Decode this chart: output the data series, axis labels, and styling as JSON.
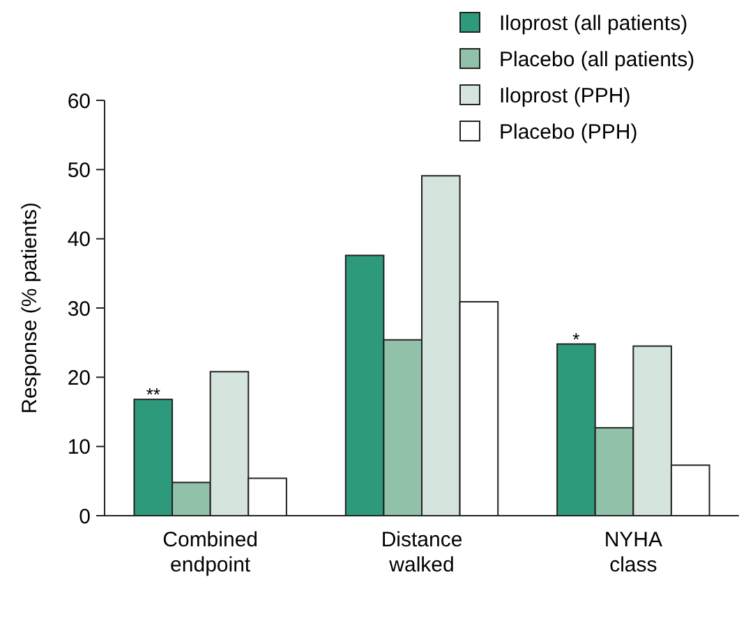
{
  "chart_data": {
    "type": "bar",
    "ylabel": "Response (% patients)",
    "categories": [
      "Combined endpoint",
      "Distance walked",
      "NYHA class"
    ],
    "series": [
      {
        "name": "Iloprost (all patients)",
        "color": "#2e9a7c",
        "values": [
          16.8,
          37.6,
          24.8
        ]
      },
      {
        "name": "Placebo (all patients)",
        "color": "#92c1aa",
        "values": [
          4.8,
          25.4,
          12.7
        ]
      },
      {
        "name": "Iloprost (PPH)",
        "color": "#d5e5dd",
        "values": [
          20.8,
          49.1,
          24.5
        ]
      },
      {
        "name": "Placebo (PPH)",
        "color": "#ffffff",
        "values": [
          5.4,
          30.9,
          7.3
        ]
      }
    ],
    "ylim": [
      0,
      60
    ],
    "yticks": [
      0,
      10,
      20,
      30,
      40,
      50,
      60
    ],
    "grid": false,
    "legend": "top right",
    "annotations": [
      {
        "text": "**",
        "x": "Combined endpoint",
        "y": 16.8
      },
      {
        "text": "*",
        "x": "NYHA class",
        "y": 24.8
      }
    ]
  }
}
